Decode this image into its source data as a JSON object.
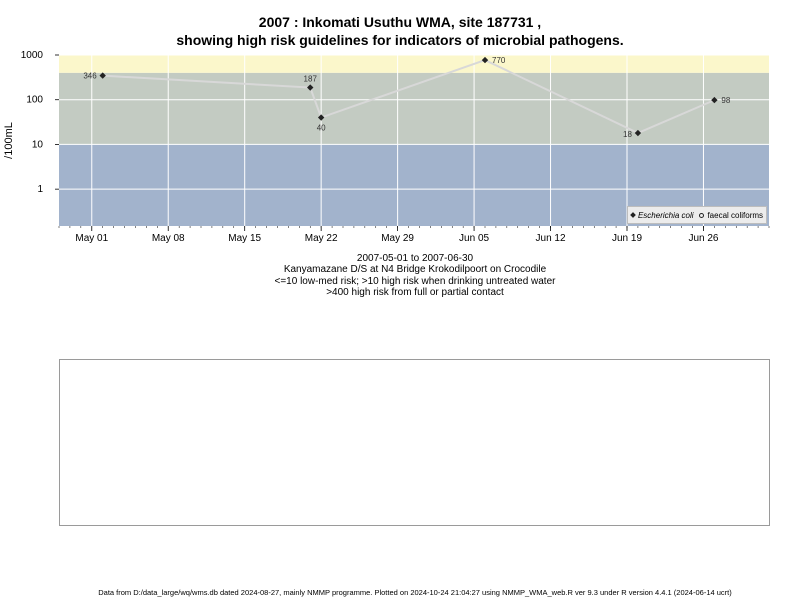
{
  "chart_data": {
    "type": "scatter",
    "title": "2007 : Inkomati Usuthu WMA, site 187731 ,",
    "subtitle": "showing high risk guidelines for indicators of microbial pathogens.",
    "ylabel": "/100mL",
    "yscale": "log",
    "ylim": [
      0.15,
      1000
    ],
    "xlim": [
      "2007-04-28",
      "2007-07-02"
    ],
    "ytick_labels": [
      "1",
      "10",
      "100",
      "1000"
    ],
    "ytick_values": [
      1,
      10,
      100,
      1000
    ],
    "xtick_labels": [
      "May 01",
      "May 08",
      "May 15",
      "May 22",
      "May 29",
      "Jun 05",
      "Jun 12",
      "Jun 19",
      "Jun 26"
    ],
    "xtick_values": [
      "2007-05-01",
      "2007-05-08",
      "2007-05-15",
      "2007-05-22",
      "2007-05-29",
      "2007-06-05",
      "2007-06-12",
      "2007-06-19",
      "2007-06-26"
    ],
    "grid": true,
    "bands": [
      {
        "from": 0.15,
        "to": 10,
        "color": "#a2b3cc"
      },
      {
        "from": 10,
        "to": 400,
        "color": "#c3cbc2"
      },
      {
        "from": 400,
        "to": 1000,
        "color": "#fbf7cb"
      }
    ],
    "legend": {
      "placement": "bottom-right",
      "entries": [
        "Escherichia coli",
        "faecal coliforms"
      ]
    },
    "series": [
      {
        "name": "Escherichia coli",
        "marker": "diamond",
        "color": "#222222",
        "line_color": "#d8d8d8",
        "points": [
          {
            "x": "2007-05-02",
            "y": 346,
            "label": "346"
          },
          {
            "x": "2007-05-21",
            "y": 187,
            "label": "187"
          },
          {
            "x": "2007-05-22",
            "y": 40,
            "label": "40"
          },
          {
            "x": "2007-06-06",
            "y": 770,
            "label": "770"
          },
          {
            "x": "2007-06-20",
            "y": 18,
            "label": "18"
          },
          {
            "x": "2007-06-27",
            "y": 98,
            "label": "98"
          }
        ]
      }
    ]
  },
  "captions": {
    "date_range": "2007-05-01 to 2007-06-30",
    "site": "Kanyamazane D/S at N4 Bridge Krokodilpoort on Crocodile",
    "guideline1": "<=10 low-med risk; >10 high risk when drinking untreated water",
    "guideline2": ">400 high risk from full or partial contact"
  },
  "footer": "Data from D:/data_large/wq/wms.db dated 2024-08-27, mainly NMMP programme. Plotted on 2024-10-24 21:04:27 using NMMP_WMA_web.R ver 9.3 under R version 4.4.1 (2024-06-14 ucrt)"
}
